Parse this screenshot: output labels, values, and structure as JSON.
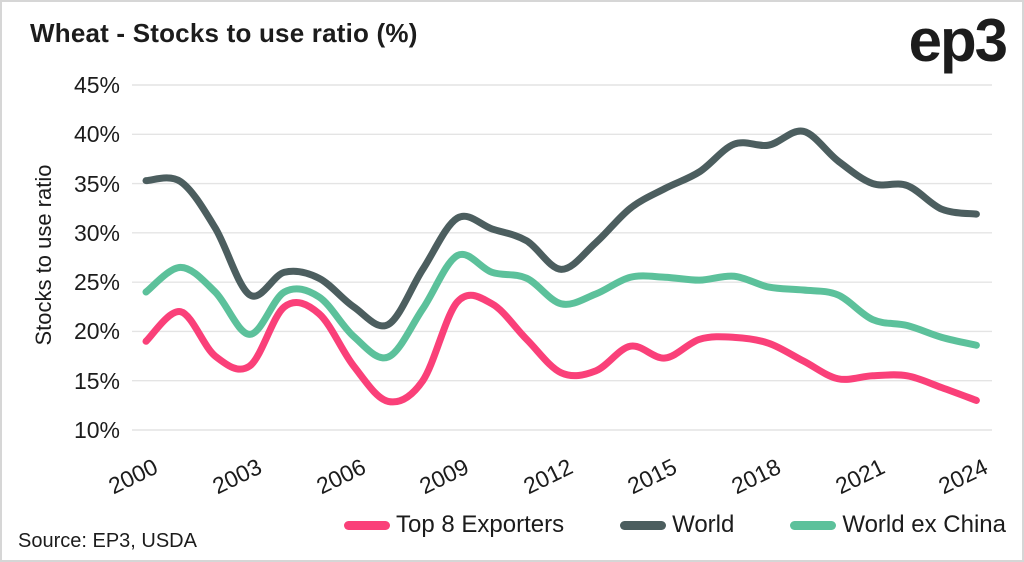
{
  "header": {
    "title": "Wheat - Stocks to use ratio (%)",
    "logo": "ep3"
  },
  "source": "Source: EP3, USDA",
  "chart_data": {
    "type": "line",
    "title": "Wheat - Stocks to use ratio (%)",
    "ylabel": "Stocks to use ratio",
    "ylim": [
      10,
      45
    ],
    "yticks": [
      45,
      40,
      35,
      30,
      25,
      20,
      15,
      10
    ],
    "ytick_suffix": "%",
    "x": [
      2000,
      2001,
      2002,
      2003,
      2004,
      2005,
      2006,
      2007,
      2008,
      2009,
      2010,
      2011,
      2012,
      2013,
      2014,
      2015,
      2016,
      2017,
      2018,
      2019,
      2020,
      2021,
      2022,
      2023,
      2024
    ],
    "xticks": [
      2000,
      2003,
      2006,
      2009,
      2012,
      2015,
      2018,
      2021,
      2024
    ],
    "grid": "horizontal",
    "legend_position": "bottom",
    "smoothing": "spline",
    "colors": {
      "gridline": "#e4e4e4",
      "text": "#1c1c1c"
    },
    "series": [
      {
        "name": "Top 8 Exporters",
        "color": "#fa4079",
        "values": [
          19.0,
          22.0,
          17.5,
          16.5,
          22.5,
          21.8,
          16.5,
          12.9,
          15.0,
          23.0,
          22.8,
          19.2,
          15.8,
          16.0,
          18.5,
          17.3,
          19.2,
          19.4,
          18.8,
          17.0,
          15.2,
          15.5,
          15.5,
          14.3,
          13.0
        ]
      },
      {
        "name": "World",
        "color": "#4c5e5f",
        "values": [
          35.3,
          35.2,
          30.5,
          23.7,
          26.0,
          25.4,
          22.5,
          20.7,
          26.3,
          31.5,
          30.4,
          29.2,
          26.3,
          29.0,
          32.5,
          34.5,
          36.2,
          39.0,
          38.9,
          40.3,
          37.3,
          35.0,
          34.8,
          32.4,
          31.9
        ]
      },
      {
        "name": "World ex China",
        "color": "#5cc19b",
        "values": [
          24.0,
          26.5,
          24.0,
          19.7,
          24.0,
          23.5,
          19.5,
          17.4,
          22.3,
          27.7,
          26.0,
          25.4,
          22.8,
          23.8,
          25.5,
          25.5,
          25.2,
          25.6,
          24.5,
          24.2,
          23.7,
          21.2,
          20.6,
          19.4,
          18.6
        ]
      }
    ]
  }
}
